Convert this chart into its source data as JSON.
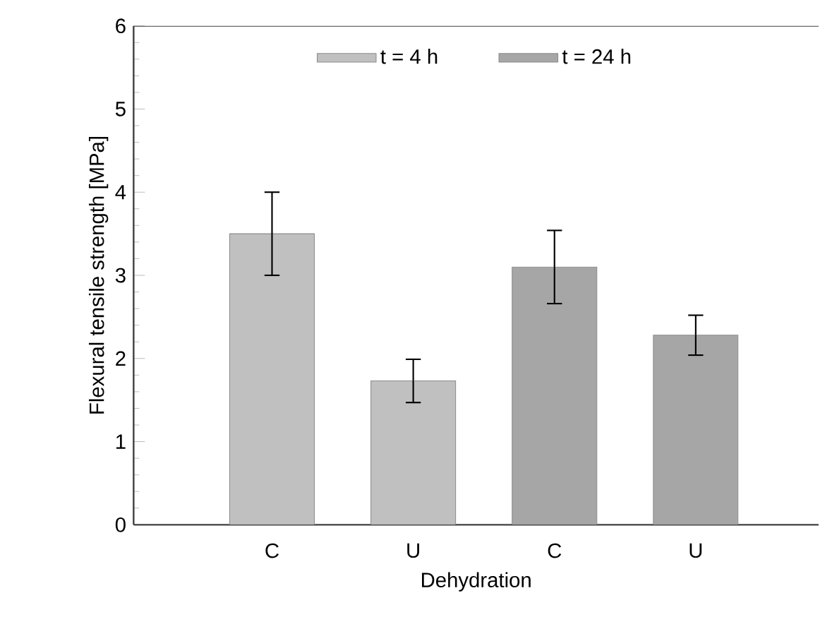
{
  "chart_data": {
    "type": "bar",
    "xlabel": "Dehydration",
    "ylabel": "Flexural tensile strength [MPa]",
    "categories": [
      "C",
      "U",
      "C",
      "U"
    ],
    "series": [
      {
        "name": "t = 4 h",
        "color": "#c0c0c0",
        "values": [
          3.5,
          1.73,
          null,
          null
        ],
        "errors": [
          0.5,
          0.26,
          null,
          null
        ]
      },
      {
        "name": "t = 24 h",
        "color": "#a6a6a6",
        "values": [
          null,
          null,
          3.1,
          2.28
        ],
        "errors": [
          null,
          null,
          0.44,
          0.24
        ]
      }
    ],
    "ylim": [
      0,
      6
    ],
    "yticks": [
      0,
      1,
      2,
      3,
      4,
      5,
      6
    ],
    "legend": "top",
    "grid": false
  }
}
